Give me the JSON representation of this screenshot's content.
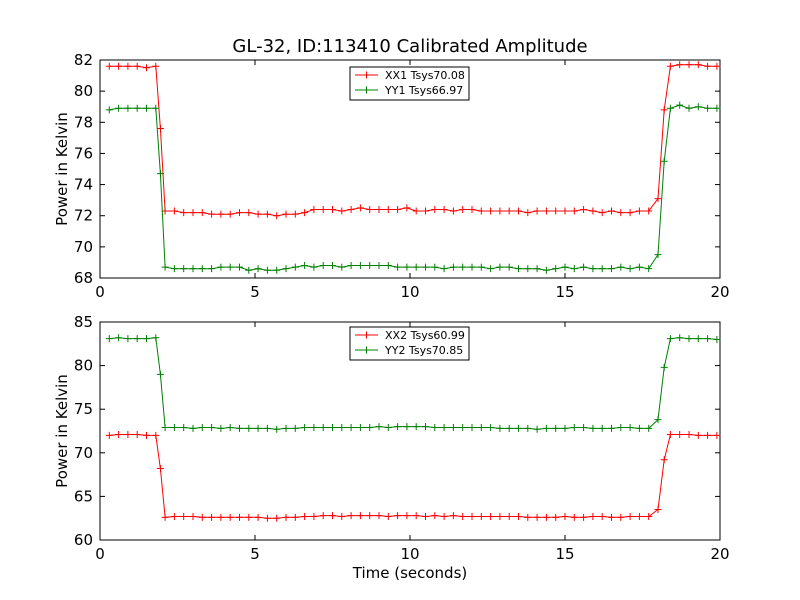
{
  "figure": {
    "title": "GL-32, ID:113410 Calibrated Amplitude"
  },
  "chart_data": [
    {
      "type": "line",
      "title": "GL-32, ID:113410 Calibrated Amplitude",
      "xlabel": "",
      "ylabel": "Power in Kelvin",
      "xlim": [
        0,
        20
      ],
      "ylim": [
        68,
        82
      ],
      "xticks": [
        "0",
        "5",
        "10",
        "15",
        "20"
      ],
      "yticks": [
        "68",
        "70",
        "72",
        "74",
        "76",
        "78",
        "80",
        "82"
      ],
      "grid": false,
      "legend_position": "top-center",
      "x": [
        0.3,
        0.6,
        0.9,
        1.2,
        1.5,
        1.8,
        1.95,
        2.1,
        2.4,
        2.7,
        3.0,
        3.3,
        3.6,
        3.9,
        4.2,
        4.5,
        4.8,
        5.1,
        5.4,
        5.7,
        6.0,
        6.3,
        6.6,
        6.9,
        7.2,
        7.5,
        7.8,
        8.1,
        8.4,
        8.7,
        9.0,
        9.3,
        9.6,
        9.9,
        10.2,
        10.5,
        10.8,
        11.1,
        11.4,
        11.7,
        12.0,
        12.3,
        12.6,
        12.9,
        13.2,
        13.5,
        13.8,
        14.1,
        14.4,
        14.7,
        15.0,
        15.3,
        15.6,
        15.9,
        16.2,
        16.5,
        16.8,
        17.1,
        17.4,
        17.7,
        18.0,
        18.2,
        18.4,
        18.7,
        19.0,
        19.3,
        19.6,
        19.9
      ],
      "series": [
        {
          "name": "XX1 Tsys70.08",
          "color": "#ff0000",
          "values": [
            81.6,
            81.6,
            81.6,
            81.6,
            81.5,
            81.6,
            77.6,
            72.3,
            72.3,
            72.2,
            72.2,
            72.2,
            72.1,
            72.1,
            72.1,
            72.2,
            72.2,
            72.1,
            72.1,
            72.0,
            72.1,
            72.1,
            72.2,
            72.4,
            72.4,
            72.4,
            72.3,
            72.4,
            72.5,
            72.4,
            72.4,
            72.4,
            72.4,
            72.5,
            72.3,
            72.3,
            72.4,
            72.4,
            72.3,
            72.4,
            72.4,
            72.3,
            72.3,
            72.3,
            72.3,
            72.3,
            72.2,
            72.3,
            72.3,
            72.3,
            72.3,
            72.3,
            72.4,
            72.3,
            72.2,
            72.3,
            72.2,
            72.2,
            72.3,
            72.3,
            73.1,
            78.8,
            81.6,
            81.7,
            81.7,
            81.7,
            81.6,
            81.6
          ]
        },
        {
          "name": "YY1 Tsys66.97",
          "color": "#008000",
          "values": [
            78.8,
            78.9,
            78.9,
            78.9,
            78.9,
            78.9,
            74.7,
            68.7,
            68.6,
            68.6,
            68.6,
            68.6,
            68.6,
            68.7,
            68.7,
            68.7,
            68.5,
            68.6,
            68.5,
            68.5,
            68.6,
            68.7,
            68.8,
            68.7,
            68.8,
            68.8,
            68.7,
            68.8,
            68.8,
            68.8,
            68.8,
            68.8,
            68.7,
            68.7,
            68.7,
            68.7,
            68.7,
            68.6,
            68.7,
            68.7,
            68.7,
            68.7,
            68.6,
            68.7,
            68.7,
            68.6,
            68.6,
            68.6,
            68.5,
            68.6,
            68.7,
            68.6,
            68.7,
            68.6,
            68.6,
            68.6,
            68.7,
            68.6,
            68.7,
            68.6,
            69.5,
            75.5,
            78.9,
            79.1,
            78.9,
            79.0,
            78.9,
            78.9
          ]
        }
      ]
    },
    {
      "type": "line",
      "title": "",
      "xlabel": "Time (seconds)",
      "ylabel": "Power in Kelvin",
      "xlim": [
        0,
        20
      ],
      "ylim": [
        60,
        85
      ],
      "xticks": [
        "0",
        "5",
        "10",
        "15",
        "20"
      ],
      "yticks": [
        "60",
        "65",
        "70",
        "75",
        "80",
        "85"
      ],
      "grid": false,
      "legend_position": "top-center",
      "x": [
        0.3,
        0.6,
        0.9,
        1.2,
        1.5,
        1.8,
        1.95,
        2.1,
        2.4,
        2.7,
        3.0,
        3.3,
        3.6,
        3.9,
        4.2,
        4.5,
        4.8,
        5.1,
        5.4,
        5.7,
        6.0,
        6.3,
        6.6,
        6.9,
        7.2,
        7.5,
        7.8,
        8.1,
        8.4,
        8.7,
        9.0,
        9.3,
        9.6,
        9.9,
        10.2,
        10.5,
        10.8,
        11.1,
        11.4,
        11.7,
        12.0,
        12.3,
        12.6,
        12.9,
        13.2,
        13.5,
        13.8,
        14.1,
        14.4,
        14.7,
        15.0,
        15.3,
        15.6,
        15.9,
        16.2,
        16.5,
        16.8,
        17.1,
        17.4,
        17.7,
        18.0,
        18.2,
        18.4,
        18.7,
        19.0,
        19.3,
        19.6,
        19.9
      ],
      "series": [
        {
          "name": "XX2 Tsys60.99",
          "color": "#ff0000",
          "values": [
            72.0,
            72.1,
            72.1,
            72.1,
            72.0,
            72.0,
            68.2,
            62.6,
            62.7,
            62.7,
            62.7,
            62.6,
            62.6,
            62.6,
            62.6,
            62.6,
            62.6,
            62.6,
            62.5,
            62.5,
            62.6,
            62.6,
            62.7,
            62.7,
            62.8,
            62.8,
            62.7,
            62.8,
            62.8,
            62.8,
            62.8,
            62.7,
            62.8,
            62.8,
            62.8,
            62.7,
            62.8,
            62.7,
            62.8,
            62.7,
            62.7,
            62.7,
            62.7,
            62.7,
            62.7,
            62.7,
            62.6,
            62.6,
            62.6,
            62.6,
            62.7,
            62.6,
            62.6,
            62.7,
            62.7,
            62.6,
            62.6,
            62.7,
            62.7,
            62.7,
            63.5,
            69.2,
            72.1,
            72.1,
            72.1,
            72.0,
            72.0,
            72.0
          ]
        },
        {
          "name": "YY2 Tsys70.85",
          "color": "#008000",
          "values": [
            83.1,
            83.2,
            83.1,
            83.1,
            83.1,
            83.2,
            79.0,
            72.9,
            72.9,
            72.9,
            72.8,
            72.9,
            72.9,
            72.8,
            72.9,
            72.8,
            72.8,
            72.8,
            72.8,
            72.7,
            72.8,
            72.8,
            72.9,
            72.9,
            72.9,
            72.9,
            72.9,
            72.9,
            72.9,
            72.9,
            73.0,
            72.9,
            73.0,
            73.0,
            73.0,
            73.0,
            72.9,
            72.9,
            72.9,
            72.9,
            72.9,
            72.9,
            72.9,
            72.8,
            72.8,
            72.8,
            72.8,
            72.7,
            72.8,
            72.8,
            72.8,
            72.9,
            72.9,
            72.8,
            72.8,
            72.8,
            72.9,
            72.9,
            72.8,
            72.8,
            73.8,
            79.8,
            83.1,
            83.2,
            83.1,
            83.1,
            83.1,
            83.0
          ]
        }
      ]
    }
  ]
}
